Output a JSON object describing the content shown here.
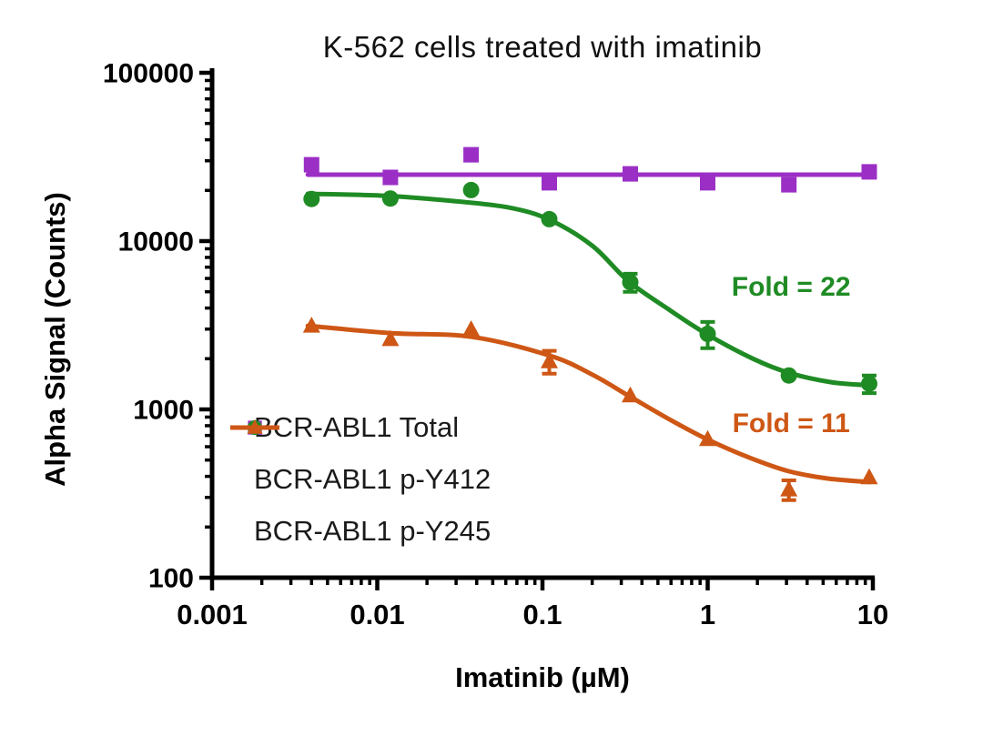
{
  "chart_data": {
    "type": "scatter-line",
    "title": "K-562 cells treated with imatinib",
    "xlabel": "Imatinib (µM)",
    "ylabel": "Alpha Signal (Counts)",
    "x_scale": "log",
    "y_scale": "log",
    "xlim": [
      0.001,
      10
    ],
    "ylim": [
      100,
      100000
    ],
    "grid": false,
    "legend_position": "inside-lower-left",
    "background": "#ffffff",
    "axis_color": "#000000",
    "x_ticks": [
      {
        "v": 0.001,
        "label": "0.001"
      },
      {
        "v": 0.01,
        "label": "0.01"
      },
      {
        "v": 0.1,
        "label": "0.1"
      },
      {
        "v": 1,
        "label": "1"
      },
      {
        "v": 10,
        "label": "10"
      }
    ],
    "y_ticks": [
      {
        "v": 100000,
        "label": "100000"
      },
      {
        "v": 10000,
        "label": "10000"
      },
      {
        "v": 1000,
        "label": "1000"
      },
      {
        "v": 100,
        "label": "100"
      }
    ],
    "series": [
      {
        "key": "total",
        "name": "BCR-ABL1 Total",
        "color": "#9B2FC5",
        "marker": "square",
        "x_um": [
          0.004,
          0.012,
          0.037,
          0.11,
          0.34,
          1.0,
          3.1,
          9.5
        ],
        "y_counts": [
          28400,
          23900,
          32600,
          22200,
          25100,
          22200,
          21600,
          25800
        ],
        "y_err": [
          0,
          0,
          0,
          0,
          0,
          0,
          0,
          0
        ],
        "fit": [
          [
            0.0038,
            24800
          ],
          [
            9.6,
            24800
          ]
        ]
      },
      {
        "key": "p-y412",
        "name": "BCR-ABL1 p-Y412",
        "color": "#1F8B24",
        "marker": "circle",
        "x_um": [
          0.004,
          0.012,
          0.037,
          0.11,
          0.34,
          1.0,
          3.1,
          9.5
        ],
        "y_counts": [
          17800,
          17900,
          20100,
          13500,
          5700,
          2810,
          1590,
          1420
        ],
        "y_err": [
          0,
          0,
          0,
          0,
          700,
          500,
          0,
          170
        ],
        "fit": [
          [
            0.0038,
            19100
          ],
          [
            0.011,
            18600
          ],
          [
            0.029,
            17300
          ],
          [
            0.063,
            15800
          ],
          [
            0.11,
            13400
          ],
          [
            0.2,
            9400
          ],
          [
            0.33,
            5800
          ],
          [
            0.58,
            3930
          ],
          [
            1.0,
            2780
          ],
          [
            1.9,
            1990
          ],
          [
            3.1,
            1650
          ],
          [
            5.6,
            1450
          ],
          [
            9.6,
            1390
          ]
        ]
      },
      {
        "key": "p-y245",
        "name": "BCR-ABL1 p-Y245",
        "color": "#CE5715",
        "marker": "triangle",
        "x_um": [
          0.004,
          0.012,
          0.037,
          0.11,
          0.34,
          1.0,
          3.1,
          9.5
        ],
        "y_counts": [
          3140,
          2610,
          2990,
          1930,
          1210,
          665,
          334,
          394
        ],
        "y_err": [
          0,
          0,
          0,
          300,
          0,
          0,
          45,
          0
        ],
        "fit": [
          [
            0.0038,
            3140
          ],
          [
            0.012,
            2840
          ],
          [
            0.037,
            2700
          ],
          [
            0.11,
            2090
          ],
          [
            0.2,
            1610
          ],
          [
            0.33,
            1210
          ],
          [
            0.59,
            870
          ],
          [
            1.0,
            662
          ],
          [
            1.8,
            516
          ],
          [
            3.1,
            429
          ],
          [
            5.4,
            388
          ],
          [
            9.6,
            370
          ]
        ]
      }
    ],
    "annotations": [
      {
        "text": "Fold = 22",
        "color": "#1F8B24",
        "x_um": 3.2,
        "y_counts": 5300
      },
      {
        "text": "Fold = 11",
        "color": "#CE5715",
        "x_um": 3.2,
        "y_counts": 820
      }
    ]
  }
}
